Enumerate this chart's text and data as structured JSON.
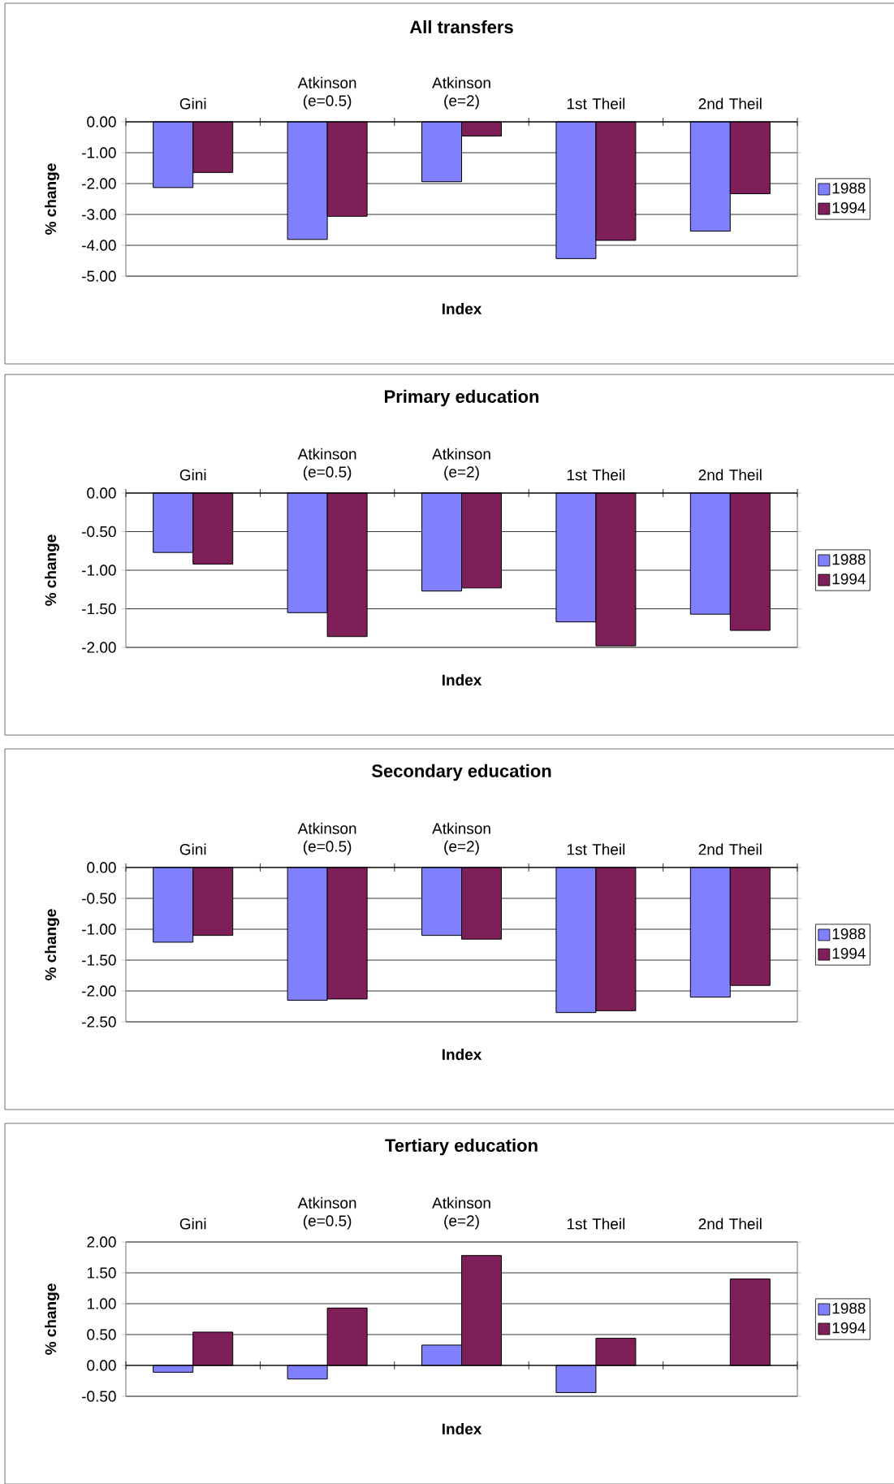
{
  "chart_data": [
    {
      "type": "bar",
      "title": "All transfers",
      "xlabel": "Index",
      "ylabel": "% change",
      "categories": [
        "Gini",
        "Atkinson (e=0.5)",
        "Atkinson (e=2)",
        "1st Theil",
        "2nd Theil"
      ],
      "series": [
        {
          "name": "1988",
          "color": "#8080ff",
          "values": [
            -2.13,
            -3.81,
            -1.94,
            -4.43,
            -3.54
          ]
        },
        {
          "name": "1994",
          "color": "#7f1f5a",
          "values": [
            -1.64,
            -3.06,
            -0.46,
            -3.84,
            -2.33
          ]
        }
      ],
      "ylim": [
        -5,
        0
      ],
      "yticks": [
        {
          "value": 0,
          "label": "0.00"
        },
        {
          "value": -1,
          "label": "-1.00"
        },
        {
          "value": -2,
          "label": "-2.00"
        },
        {
          "value": -3,
          "label": "-3.00"
        },
        {
          "value": -4,
          "label": "-4.00"
        },
        {
          "value": -5,
          "label": "-5.00"
        }
      ],
      "grid": "y",
      "legend": "right"
    },
    {
      "type": "bar",
      "title": "Primary education",
      "xlabel": "Index",
      "ylabel": "% change",
      "categories": [
        "Gini",
        "Atkinson (e=0.5)",
        "Atkinson (e=2)",
        "1st Theil",
        "2nd Theil"
      ],
      "series": [
        {
          "name": "1988",
          "color": "#8080ff",
          "values": [
            -0.77,
            -1.55,
            -1.27,
            -1.67,
            -1.57
          ]
        },
        {
          "name": "1994",
          "color": "#7f1f5a",
          "values": [
            -0.92,
            -1.86,
            -1.23,
            -1.98,
            -1.78
          ]
        }
      ],
      "ylim": [
        -2,
        0
      ],
      "yticks": [
        {
          "value": 0,
          "label": "0.00"
        },
        {
          "value": -0.5,
          "label": "-0.50"
        },
        {
          "value": -1,
          "label": "-1.00"
        },
        {
          "value": -1.5,
          "label": "-1.50"
        },
        {
          "value": -2,
          "label": "-2.00"
        }
      ],
      "grid": "y",
      "legend": "right"
    },
    {
      "type": "bar",
      "title": "Secondary education",
      "xlabel": "Index",
      "ylabel": "% change",
      "categories": [
        "Gini",
        "Atkinson (e=0.5)",
        "Atkinson (e=2)",
        "1st Theil",
        "2nd Theil"
      ],
      "series": [
        {
          "name": "1988",
          "color": "#8080ff",
          "values": [
            -1.21,
            -2.15,
            -1.1,
            -2.35,
            -2.1
          ]
        },
        {
          "name": "1994",
          "color": "#7f1f5a",
          "values": [
            -1.1,
            -2.13,
            -1.16,
            -2.32,
            -1.91
          ]
        }
      ],
      "ylim": [
        -2.5,
        0
      ],
      "yticks": [
        {
          "value": 0,
          "label": "0.00"
        },
        {
          "value": -0.5,
          "label": "-0.50"
        },
        {
          "value": -1,
          "label": "-1.00"
        },
        {
          "value": -1.5,
          "label": "-1.50"
        },
        {
          "value": -2,
          "label": "-2.00"
        },
        {
          "value": -2.5,
          "label": "-2.50"
        }
      ],
      "grid": "y",
      "legend": "right"
    },
    {
      "type": "bar",
      "title": "Tertiary education",
      "xlabel": "Index",
      "ylabel": "% change",
      "categories": [
        "Gini",
        "Atkinson (e=0.5)",
        "Atkinson (e=2)",
        "1st Theil",
        "2nd Theil"
      ],
      "series": [
        {
          "name": "1988",
          "color": "#8080ff",
          "values": [
            -0.11,
            -0.22,
            0.33,
            -0.44,
            null
          ]
        },
        {
          "name": "1994",
          "color": "#7f1f5a",
          "values": [
            0.54,
            0.93,
            1.78,
            0.44,
            1.4
          ]
        }
      ],
      "ylim": [
        -0.5,
        2
      ],
      "yticks": [
        {
          "value": 2,
          "label": "2.00"
        },
        {
          "value": 1.5,
          "label": "1.50"
        },
        {
          "value": 1,
          "label": "1.00"
        },
        {
          "value": 0.5,
          "label": "0.50"
        },
        {
          "value": 0,
          "label": "0.00"
        },
        {
          "value": -0.5,
          "label": "-0.50"
        }
      ],
      "grid": "y",
      "legend": "right"
    }
  ]
}
